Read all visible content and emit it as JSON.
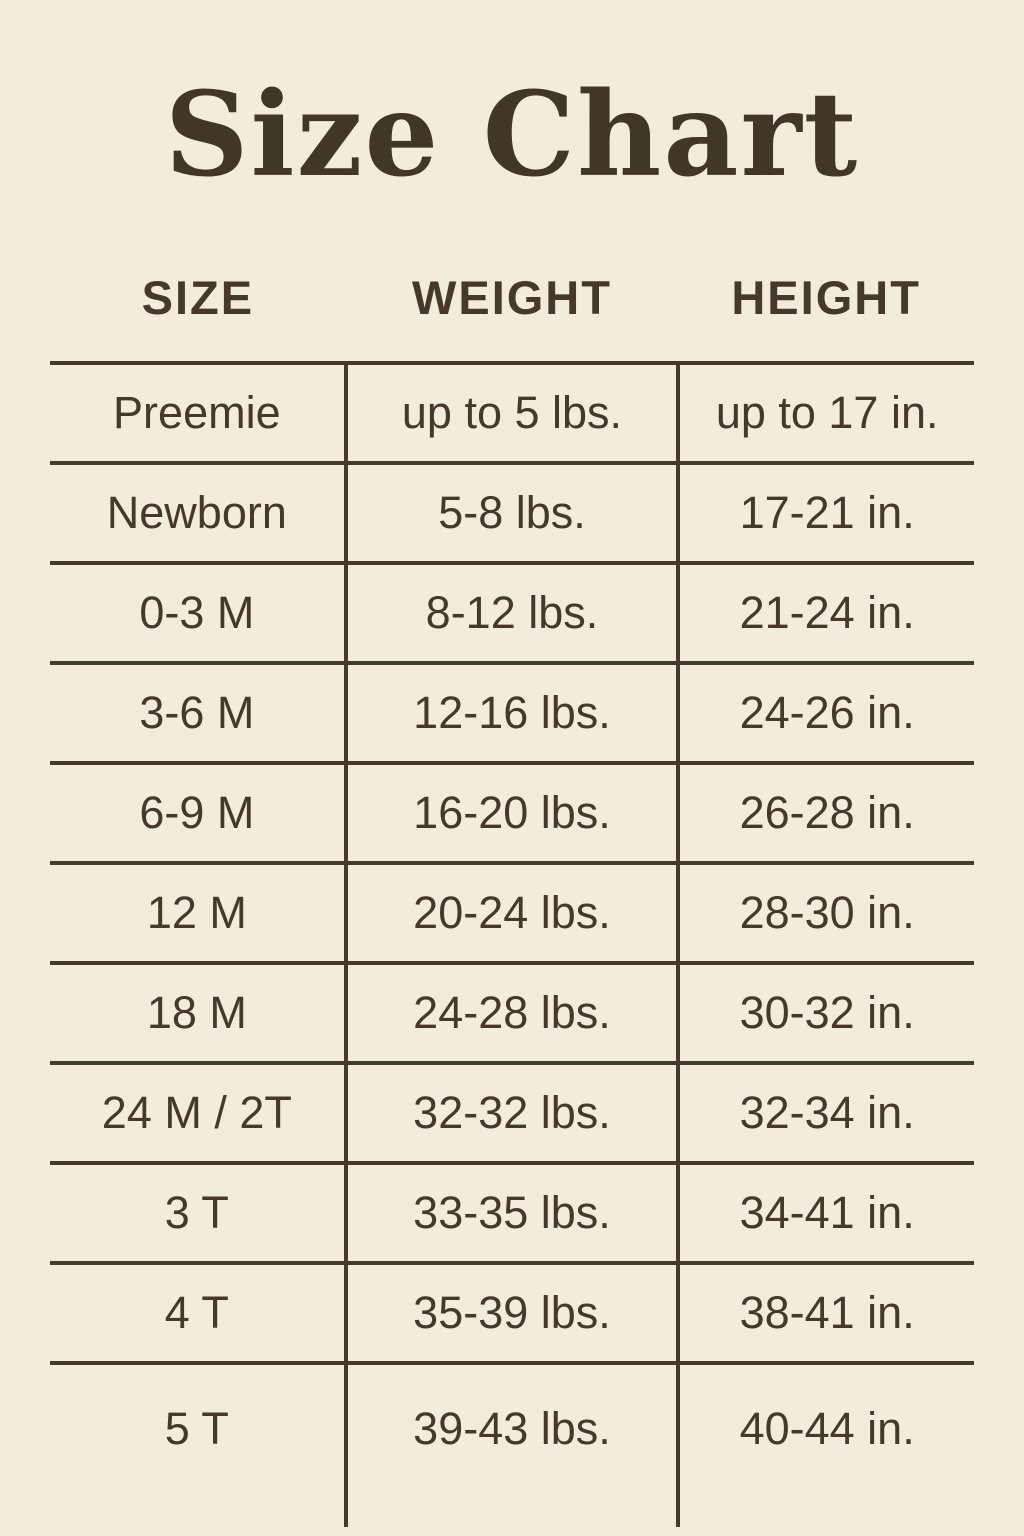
{
  "page": {
    "background_color": "#f2ecdf",
    "text_color": "#45392a",
    "rule_color": "#45392a"
  },
  "title": "Size Chart",
  "chart_data": {
    "type": "table",
    "title": "Size Chart",
    "columns": [
      "SIZE",
      "WEIGHT",
      "HEIGHT"
    ],
    "rows": [
      [
        "Preemie",
        "up to 5 lbs.",
        "up to 17 in."
      ],
      [
        "Newborn",
        "5-8 lbs.",
        "17-21 in."
      ],
      [
        "0-3 M",
        "8-12 lbs.",
        "21-24 in."
      ],
      [
        "3-6 M",
        "12-16 lbs.",
        "24-26 in."
      ],
      [
        "6-9 M",
        "16-20 lbs.",
        "26-28 in."
      ],
      [
        "12 M",
        "20-24 lbs.",
        "28-30 in."
      ],
      [
        "18 M",
        "24-28 lbs.",
        "30-32 in."
      ],
      [
        "24 M / 2T",
        "32-32 lbs.",
        "32-34 in."
      ],
      [
        "3 T",
        "33-35 lbs.",
        "34-41 in."
      ],
      [
        "4 T",
        "35-39 lbs.",
        "38-41 in."
      ],
      [
        "5 T",
        "39-43 lbs.",
        "40-44 in."
      ]
    ],
    "layout": {
      "grid": "horizontal rules between rows, vertical rules between columns only below header, no outer border"
    }
  }
}
